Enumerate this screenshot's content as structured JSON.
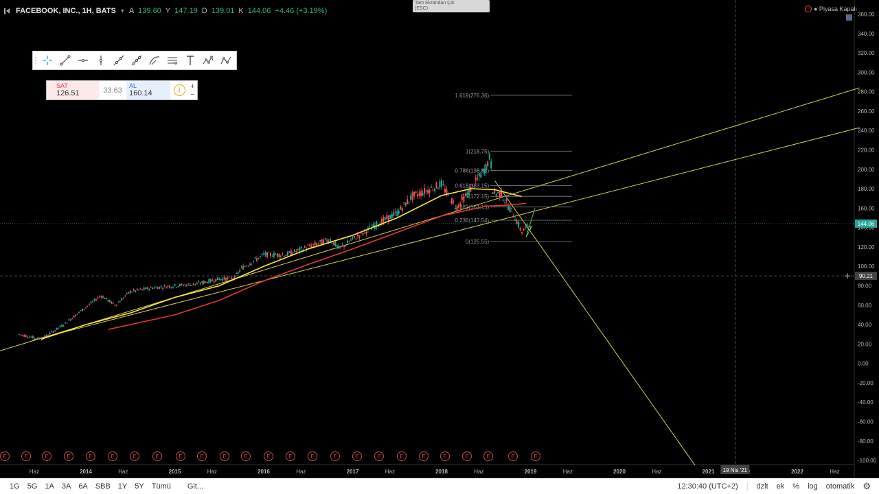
{
  "header": {
    "symbol": "FACEBOOK, INC., 1H, BATS",
    "open_label": "A",
    "open": "139.60",
    "high_label": "Y",
    "high": "147.19",
    "low_label": "D",
    "low": "139.01",
    "close_label": "K",
    "close": "144.06",
    "change": "+4.46 (+3.19%)"
  },
  "trade_panel": {
    "sell_label": "SAT",
    "sell_price": "126.51",
    "spread": "33.63",
    "buy_label": "AL",
    "buy_price": "160.14",
    "plus": "+",
    "minus": "−"
  },
  "exit_fullscreen": {
    "line1": "Tam Ekrandan Çık",
    "line2": "(ESC)"
  },
  "market_status": {
    "icon_text": "!",
    "text": "● Piyasa Kapalı"
  },
  "colors": {
    "background": "#000000",
    "candle_up": "#26a69a",
    "candle_down": "#ef5350",
    "ma_yellow": "#ffeb3b",
    "ma_red": "#e53935",
    "trendline": "#d4d44a",
    "last_price_badge": "#26a69a"
  },
  "toolbar": {
    "icons": [
      "crosshair-icon",
      "trend-line-icon",
      "horizontal-ray-icon",
      "vertical-line-icon",
      "ray-icon",
      "extended-line-icon",
      "curve-icon",
      "parallel-channel-icon",
      "text-icon",
      "xabcd-pattern-icon",
      "abcd-pattern-icon"
    ]
  },
  "bottom_bar": {
    "ranges": [
      "1G",
      "5G",
      "1A",
      "3A",
      "6A",
      "SBB",
      "1Y",
      "5Y",
      "Tümü"
    ],
    "goto": "Git...",
    "time": "12:30:40 (UTC+2)",
    "options": [
      "dzlt",
      "ek",
      "%",
      "log",
      "otomatik"
    ]
  },
  "chart_data": {
    "type": "candlestick",
    "ylim": [
      -105,
      365
    ],
    "y_ticks": [
      "360.00",
      "340.00",
      "320.00",
      "300.00",
      "280.00",
      "260.00",
      "240.00",
      "220.00",
      "200.00",
      "180.00",
      "160.00",
      "140.00",
      "120.00",
      "100.00",
      "80.00",
      "60.00",
      "40.00",
      "20.00",
      "0.00",
      "-20.00",
      "-40.00",
      "-60.00",
      "-80.00",
      "-100.00"
    ],
    "x_ticks": [
      "Haz",
      "2014",
      "Haz",
      "2015",
      "Haz",
      "2016",
      "Haz",
      "2017",
      "Haz",
      "2018",
      "Haz",
      "2019",
      "Haz",
      "2020",
      "Haz",
      "2021",
      "Haz",
      "2022",
      "Haz"
    ],
    "last_price": "144.06",
    "crosshair_price": "90.21",
    "crosshair_date": "19 Nis '21",
    "price_path": [
      [
        2013.25,
        30
      ],
      [
        2013.5,
        25
      ],
      [
        2013.75,
        40
      ],
      [
        2014.0,
        58
      ],
      [
        2014.17,
        70
      ],
      [
        2014.33,
        60
      ],
      [
        2014.5,
        74
      ],
      [
        2014.75,
        78
      ],
      [
        2015.0,
        80
      ],
      [
        2015.25,
        82
      ],
      [
        2015.5,
        87
      ],
      [
        2015.67,
        88
      ],
      [
        2015.75,
        98
      ],
      [
        2016.0,
        112
      ],
      [
        2016.25,
        112
      ],
      [
        2016.5,
        120
      ],
      [
        2016.75,
        128
      ],
      [
        2016.85,
        118
      ],
      [
        2017.0,
        128
      ],
      [
        2017.25,
        142
      ],
      [
        2017.5,
        155
      ],
      [
        2017.67,
        172
      ],
      [
        2017.83,
        178
      ],
      [
        2018.0,
        185
      ],
      [
        2018.08,
        172
      ],
      [
        2018.17,
        160
      ],
      [
        2018.33,
        180
      ],
      [
        2018.5,
        202
      ],
      [
        2018.55,
        215
      ],
      [
        2018.58,
        175
      ],
      [
        2018.67,
        175
      ],
      [
        2018.75,
        162
      ],
      [
        2018.83,
        150
      ],
      [
        2018.9,
        135
      ],
      [
        2019.0,
        144
      ]
    ],
    "ma_yellow": [
      [
        2013.5,
        25
      ],
      [
        2014.0,
        40
      ],
      [
        2014.5,
        52
      ],
      [
        2015.0,
        68
      ],
      [
        2015.5,
        80
      ],
      [
        2016.0,
        100
      ],
      [
        2016.5,
        118
      ],
      [
        2017.0,
        132
      ],
      [
        2017.5,
        150
      ],
      [
        2018.0,
        173
      ],
      [
        2018.33,
        180
      ],
      [
        2018.6,
        179
      ],
      [
        2018.9,
        172
      ]
    ],
    "ma_red": [
      [
        2014.25,
        35
      ],
      [
        2015.0,
        50
      ],
      [
        2015.5,
        65
      ],
      [
        2016.0,
        85
      ],
      [
        2016.5,
        102
      ],
      [
        2017.0,
        118
      ],
      [
        2017.5,
        135
      ],
      [
        2018.0,
        152
      ],
      [
        2018.5,
        162
      ],
      [
        2018.75,
        163
      ],
      [
        2018.95,
        165
      ]
    ],
    "fibonacci": [
      {
        "label": "1.618(276.36)",
        "value": 276.36
      },
      {
        "label": "1(218.75)",
        "value": 218.75
      },
      {
        "label": "0.786(198.82)",
        "value": 198.82
      },
      {
        "label": "0.618(183.15)",
        "value": 183.15
      },
      {
        "label": "0.5(172.15)",
        "value": 172.15
      },
      {
        "label": "0.382(161.15)",
        "value": 161.15
      },
      {
        "label": "0.236(147.54)",
        "value": 147.54
      },
      {
        "label": "0(125.55)",
        "value": 125.55
      }
    ],
    "trendlines": [
      [
        [
          2013.0,
          12
        ],
        [
          2022.7,
          284
        ]
      ],
      [
        [
          2013.4,
          24
        ],
        [
          2022.7,
          243
        ]
      ],
      [
        [
          2018.6,
          188
        ],
        [
          2020.85,
          -105
        ]
      ]
    ],
    "earnings_marker": "E"
  }
}
